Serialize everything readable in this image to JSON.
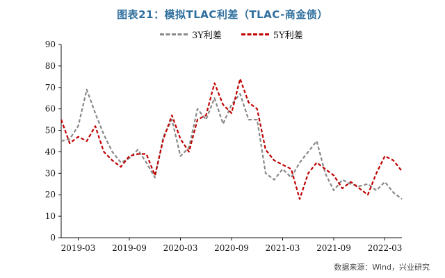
{
  "chart_data": {
    "type": "line",
    "title": "图表21：模拟TLAC利差（TLAC-商金债）",
    "xlabel": "",
    "ylabel": "",
    "ylim": [
      0,
      90
    ],
    "yticks": [
      0,
      10,
      20,
      30,
      40,
      50,
      60,
      70,
      80,
      90
    ],
    "xlim": [
      "2019-01",
      "2022-05"
    ],
    "xticks": [
      "2019-03",
      "2019-09",
      "2020-03",
      "2020-09",
      "2021-03",
      "2021-09",
      "2022-03"
    ],
    "legend_position": "top",
    "grid": false,
    "x": [
      "2019-01",
      "2019-02",
      "2019-03",
      "2019-04",
      "2019-05",
      "2019-06",
      "2019-07",
      "2019-08",
      "2019-09",
      "2019-10",
      "2019-11",
      "2019-12",
      "2020-01",
      "2020-02",
      "2020-03",
      "2020-04",
      "2020-05",
      "2020-06",
      "2020-07",
      "2020-08",
      "2020-09",
      "2020-10",
      "2020-11",
      "2020-12",
      "2021-01",
      "2021-02",
      "2021-03",
      "2021-04",
      "2021-05",
      "2021-06",
      "2021-07",
      "2021-08",
      "2021-09",
      "2021-10",
      "2021-11",
      "2021-12",
      "2022-01",
      "2022-02",
      "2022-03",
      "2022-04",
      "2022-05"
    ],
    "series": [
      {
        "name": "3Y利差",
        "color": "#888888",
        "values": [
          45,
          46,
          52,
          69,
          58,
          48,
          40,
          35,
          37,
          41,
          35,
          28,
          47,
          55,
          38,
          42,
          60,
          55,
          65,
          53,
          62,
          67,
          55,
          55,
          30,
          27,
          32,
          28,
          35,
          40,
          45,
          30,
          22,
          27,
          25,
          24,
          25,
          22,
          26,
          21,
          18
        ]
      },
      {
        "name": "5Y利差",
        "color": "#c00000",
        "values": [
          55,
          44,
          47,
          45,
          52,
          40,
          36,
          33,
          38,
          39,
          39,
          29,
          46,
          57,
          46,
          40,
          55,
          57,
          72,
          62,
          58,
          74,
          63,
          60,
          41,
          36,
          34,
          32,
          18,
          30,
          35,
          32,
          29,
          23,
          26,
          23,
          20,
          30,
          38,
          36,
          31
        ]
      }
    ]
  },
  "source": "数据来源：Wind，兴业研究"
}
